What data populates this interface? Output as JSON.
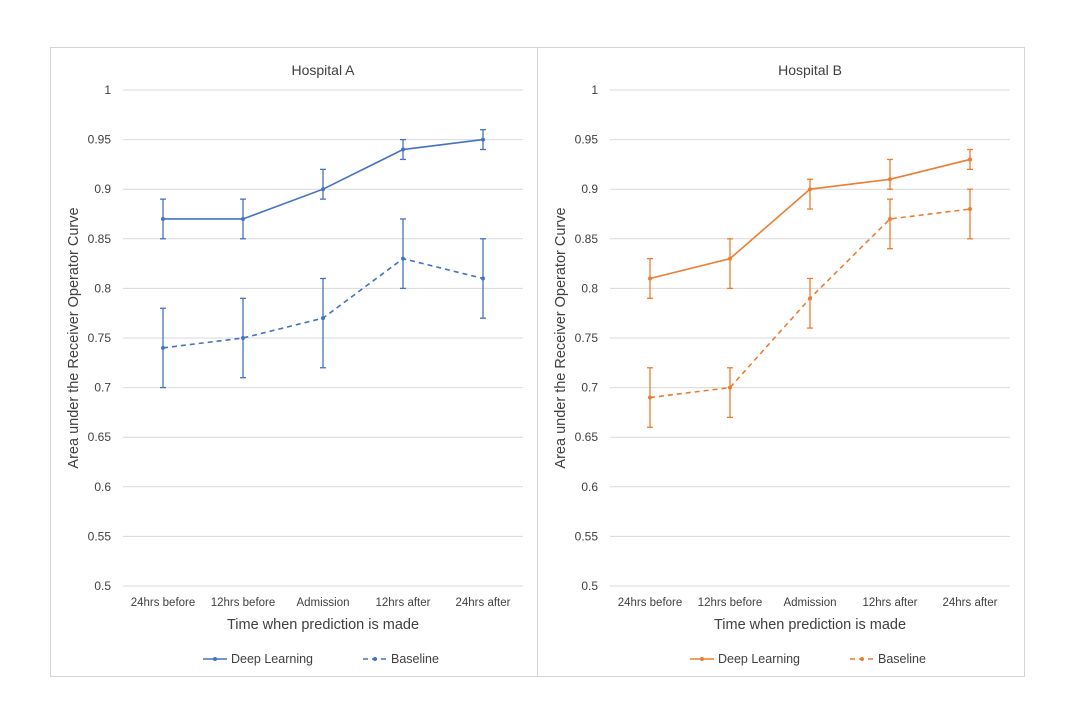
{
  "chart_data": [
    {
      "type": "line",
      "title": "Hospital A",
      "xlabel": "Time when prediction is made",
      "ylabel": "Area under the Receiver  Operator Curve",
      "ylim": [
        0.5,
        1
      ],
      "yticks": [
        "0.5",
        "0.55",
        "0.6",
        "0.65",
        "0.7",
        "0.75",
        "0.8",
        "0.85",
        "0.9",
        "0.95",
        "1"
      ],
      "grid": true,
      "legend": "bottom",
      "color": "#4472c4",
      "categories": [
        "24hrs before",
        "12hrs before",
        "Admission",
        "12hrs after",
        "24hrs after"
      ],
      "series": [
        {
          "name": "Deep Learning",
          "style": "solid",
          "values": [
            0.87,
            0.87,
            0.9,
            0.94,
            0.95
          ],
          "err_low": [
            0.85,
            0.85,
            0.89,
            0.93,
            0.94
          ],
          "err_high": [
            0.89,
            0.89,
            0.92,
            0.95,
            0.96
          ]
        },
        {
          "name": "Baseline",
          "style": "dashed",
          "values": [
            0.74,
            0.75,
            0.77,
            0.83,
            0.81
          ],
          "err_low": [
            0.7,
            0.71,
            0.72,
            0.8,
            0.77
          ],
          "err_high": [
            0.78,
            0.79,
            0.81,
            0.87,
            0.85
          ]
        }
      ]
    },
    {
      "type": "line",
      "title": "Hospital B",
      "xlabel": "Time when prediction is made",
      "ylabel": "Area under the Receiver  Operator Curve",
      "ylim": [
        0.5,
        1
      ],
      "yticks": [
        "0.5",
        "0.55",
        "0.6",
        "0.65",
        "0.7",
        "0.75",
        "0.8",
        "0.85",
        "0.9",
        "0.95",
        "1"
      ],
      "grid": true,
      "legend": "bottom",
      "color": "#ed7d31",
      "categories": [
        "24hrs before",
        "12hrs before",
        "Admission",
        "12hrs after",
        "24hrs after"
      ],
      "series": [
        {
          "name": "Deep Learning",
          "style": "solid",
          "values": [
            0.81,
            0.83,
            0.9,
            0.91,
            0.93
          ],
          "err_low": [
            0.79,
            0.8,
            0.88,
            0.9,
            0.92
          ],
          "err_high": [
            0.83,
            0.85,
            0.91,
            0.93,
            0.94
          ]
        },
        {
          "name": "Baseline",
          "style": "dashed",
          "values": [
            0.69,
            0.7,
            0.79,
            0.87,
            0.88
          ],
          "err_low": [
            0.66,
            0.67,
            0.76,
            0.84,
            0.85
          ],
          "err_high": [
            0.72,
            0.72,
            0.81,
            0.89,
            0.9
          ]
        }
      ]
    }
  ]
}
